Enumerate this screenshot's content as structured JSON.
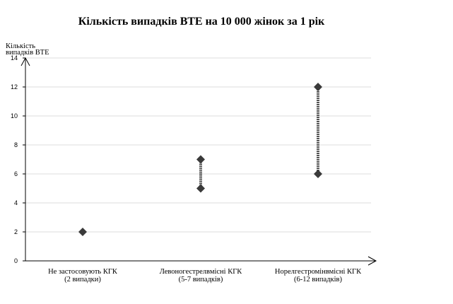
{
  "chart_data": {
    "type": "scatter",
    "title": "Кількість випадків ВТЕ на 10 000 жінок за 1 рік",
    "ylabel": [
      "Кількість",
      "випадків ВТЕ"
    ],
    "xlabel": "",
    "ylim": [
      0,
      14
    ],
    "yticks": [
      "0",
      "2",
      "4",
      "6",
      "8",
      "10",
      "12",
      "14"
    ],
    "grid": true,
    "legend": "none",
    "marker": "diamond",
    "marker_color": "#3a3a3a",
    "range_line_color": "#555555",
    "categories": [
      [
        "Не застосовують КГК",
        "(2 випадки)"
      ],
      [
        "Левоногестрелвмісні КГК",
        "(5-7 випадків)"
      ],
      [
        "Норелгестромінвмісні КГК",
        "(6-12 випадків)"
      ]
    ],
    "series": [
      {
        "low": 2,
        "high": 2
      },
      {
        "low": 5,
        "high": 7
      },
      {
        "low": 6,
        "high": 12
      }
    ]
  }
}
